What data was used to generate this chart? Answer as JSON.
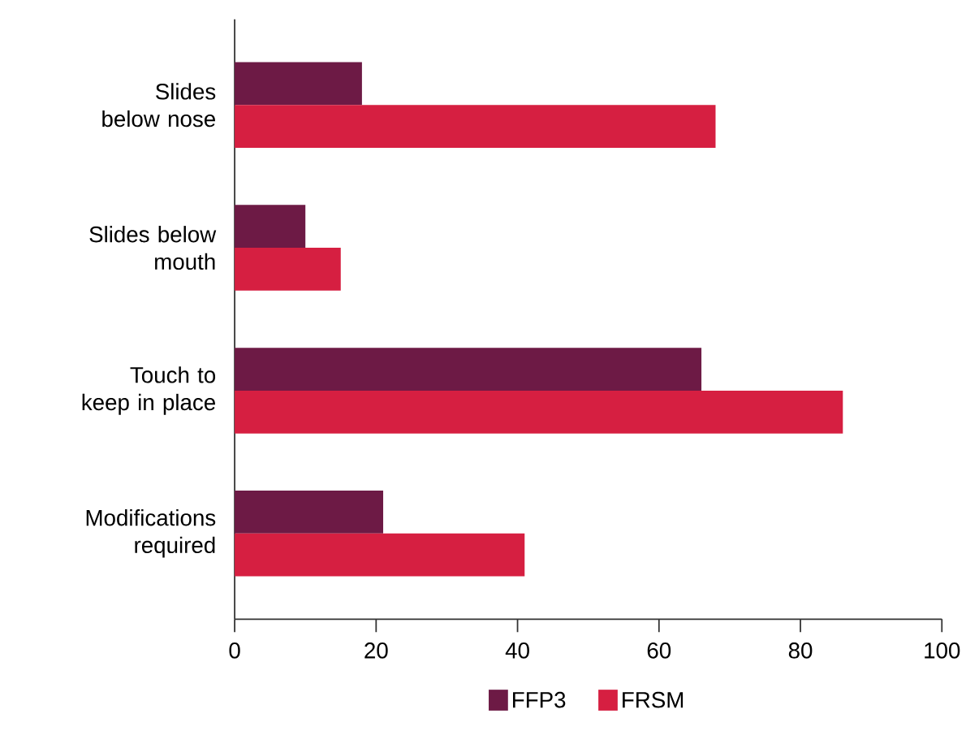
{
  "chart_data": {
    "type": "bar",
    "orientation": "horizontal",
    "categories": [
      "Slides below nose",
      "Slides below mouth",
      "Touch to keep in place",
      "Modifications required"
    ],
    "series": [
      {
        "name": "FFP3",
        "color": "#6d1a45",
        "values": [
          18,
          10,
          66,
          21
        ]
      },
      {
        "name": "FRSM",
        "color": "#d61f41",
        "values": [
          68,
          15,
          86,
          41
        ]
      }
    ],
    "xlim": [
      0,
      100
    ],
    "xticks": [
      0,
      20,
      40,
      60,
      80,
      100
    ],
    "grid": false,
    "legend": "bottom"
  }
}
